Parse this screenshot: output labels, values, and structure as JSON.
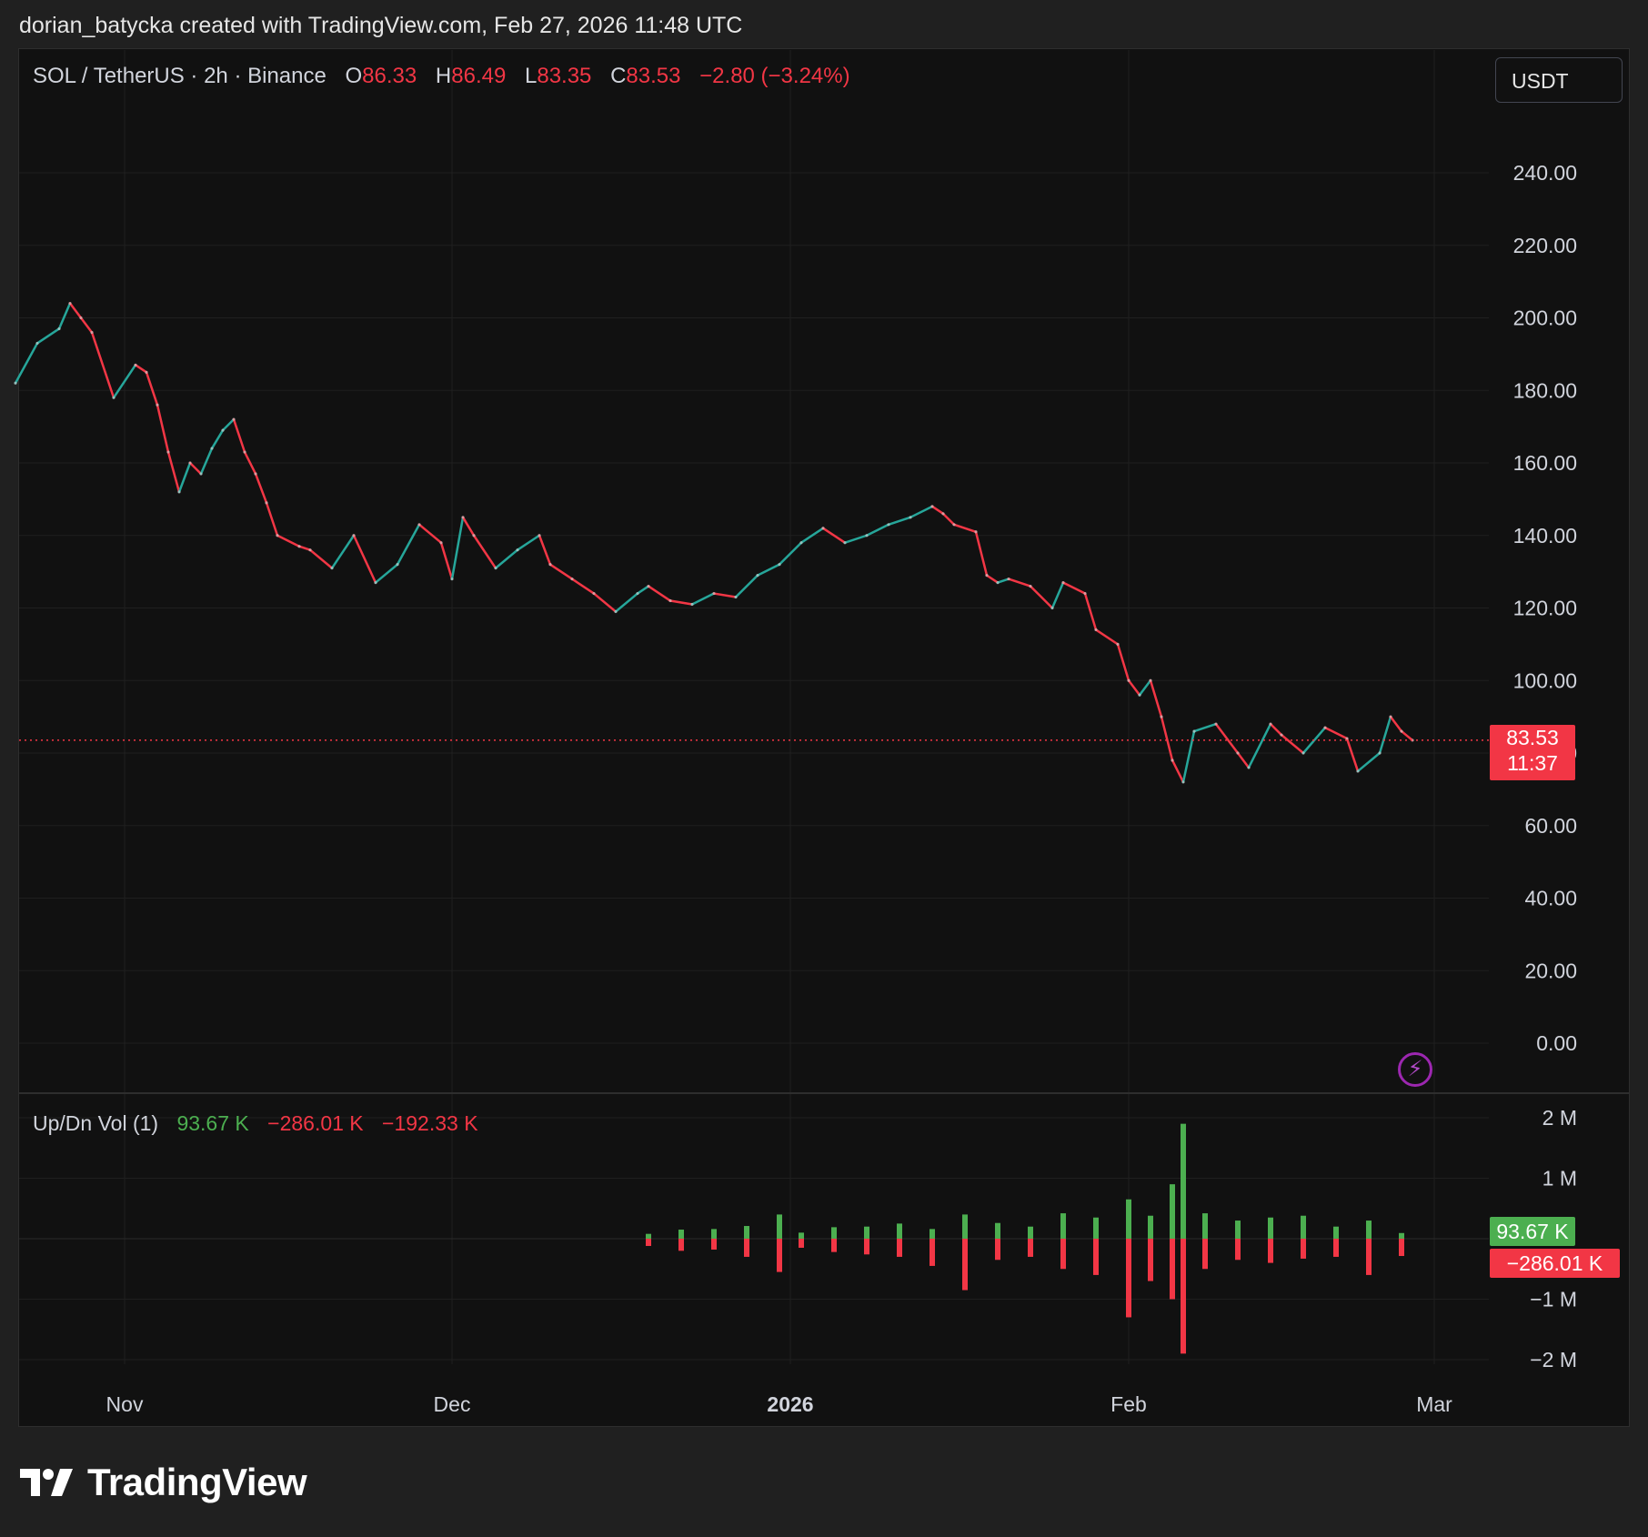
{
  "author_line": "dorian_batycka created with TradingView.com, Feb 27, 2026 11:48 UTC",
  "legend": {
    "symbol": "SOL / TetherUS · 2h · Binance",
    "open_label": "O",
    "open": "86.33",
    "high_label": "H",
    "high": "86.49",
    "low_label": "L",
    "low": "83.35",
    "close_label": "C",
    "close": "83.53",
    "change": "−2.80 (−3.24%)"
  },
  "currency_button": "USDT",
  "price_tag": {
    "price": "83.53",
    "countdown": "11:37"
  },
  "volume_legend": {
    "name": "Up/Dn Vol (1)",
    "up": "93.67 K",
    "down": "−286.01 K",
    "delta": "−192.33 K"
  },
  "volume_tags": {
    "up": "93.67 K",
    "down": "−286.01 K"
  },
  "brand": "TradingView",
  "colors": {
    "up": "#26a69a",
    "down": "#f23645",
    "vol_up": "#4caf50",
    "vol_down": "#f23645",
    "last_price_line": "#f23645",
    "bolt": "#9c27b0"
  },
  "icons": [
    "lightning-bolt-icon",
    "tradingview-logo-icon"
  ],
  "chart_data": [
    {
      "type": "line",
      "title": "SOL / TetherUS · 2h · Binance",
      "x_tick_labels": [
        "Nov",
        "Dec",
        "2026",
        "Feb",
        "Mar"
      ],
      "x_ticks": [
        "2025-11-01",
        "2025-12-01",
        "2026-01-01",
        "2026-02-01",
        "2026-03-01"
      ],
      "y_ticks": [
        0,
        20,
        40,
        60,
        80,
        100,
        120,
        140,
        160,
        180,
        200,
        220,
        240
      ],
      "y_tick_labels": [
        "0.00",
        "20.00",
        "40.00",
        "60.00",
        "80.00",
        "100.00",
        "120.00",
        "140.00",
        "160.00",
        "180.00",
        "200.00",
        "220.00",
        "240.00"
      ],
      "ylim": [
        -14,
        272
      ],
      "grid": true,
      "last_price": 83.53,
      "series": [
        {
          "x": [
            "2025-10-22",
            "2025-10-24",
            "2025-10-26",
            "2025-10-27",
            "2025-10-28",
            "2025-10-29",
            "2025-10-31",
            "2025-11-02",
            "2025-11-03",
            "2025-11-04",
            "2025-11-05",
            "2025-11-06",
            "2025-11-07",
            "2025-11-08",
            "2025-11-09",
            "2025-11-10",
            "2025-11-11",
            "2025-11-12",
            "2025-11-13",
            "2025-11-14",
            "2025-11-15",
            "2025-11-17",
            "2025-11-18",
            "2025-11-20",
            "2025-11-22",
            "2025-11-24",
            "2025-11-26",
            "2025-11-28",
            "2025-11-30",
            "2025-12-01",
            "2025-12-02",
            "2025-12-03",
            "2025-12-05",
            "2025-12-07",
            "2025-12-09",
            "2025-12-10",
            "2025-12-12",
            "2025-12-14",
            "2025-12-16",
            "2025-12-18",
            "2025-12-19",
            "2025-12-21",
            "2025-12-23",
            "2025-12-25",
            "2025-12-27",
            "2025-12-29",
            "2025-12-31",
            "2026-01-02",
            "2026-01-04",
            "2026-01-06",
            "2026-01-08",
            "2026-01-10",
            "2026-01-12",
            "2026-01-14",
            "2026-01-15",
            "2026-01-16",
            "2026-01-18",
            "2026-01-19",
            "2026-01-20",
            "2026-01-21",
            "2026-01-23",
            "2026-01-25",
            "2026-01-26",
            "2026-01-28",
            "2026-01-29",
            "2026-01-31",
            "2026-02-01",
            "2026-02-02",
            "2026-02-03",
            "2026-02-04",
            "2026-02-05",
            "2026-02-06",
            "2026-02-07",
            "2026-02-09",
            "2026-02-11",
            "2026-02-12",
            "2026-02-14",
            "2026-02-15",
            "2026-02-17",
            "2026-02-19",
            "2026-02-21",
            "2026-02-22",
            "2026-02-24",
            "2026-02-25",
            "2026-02-26",
            "2026-02-27"
          ],
          "y": [
            182,
            193,
            197,
            204,
            200,
            196,
            178,
            187,
            185,
            176,
            163,
            152,
            160,
            157,
            164,
            169,
            172,
            163,
            157,
            149,
            140,
            137,
            136,
            131,
            140,
            127,
            132,
            143,
            138,
            128,
            145,
            140,
            131,
            136,
            140,
            132,
            128,
            124,
            119,
            124,
            126,
            122,
            121,
            124,
            123,
            129,
            132,
            138,
            142,
            138,
            140,
            143,
            145,
            148,
            146,
            143,
            141,
            129,
            127,
            128,
            126,
            120,
            127,
            124,
            114,
            110,
            100,
            96,
            100,
            90,
            78,
            72,
            86,
            88,
            80,
            76,
            88,
            85,
            80,
            87,
            84,
            75,
            80,
            90,
            86,
            83.53
          ]
        }
      ]
    },
    {
      "type": "bar",
      "title": "Up/Dn Vol (1)",
      "y_ticks": [
        -2000000,
        -1000000,
        1000000,
        2000000
      ],
      "y_tick_labels": [
        "−2 M",
        "−1 M",
        "1 M",
        "2 M"
      ],
      "series": [
        {
          "name": "Up",
          "x": [
            "2025-12-19",
            "2025-12-22",
            "2025-12-25",
            "2025-12-28",
            "2025-12-31",
            "2026-01-02",
            "2026-01-05",
            "2026-01-08",
            "2026-01-11",
            "2026-01-14",
            "2026-01-17",
            "2026-01-20",
            "2026-01-23",
            "2026-01-26",
            "2026-01-29",
            "2026-02-01",
            "2026-02-03",
            "2026-02-05",
            "2026-02-06",
            "2026-02-08",
            "2026-02-11",
            "2026-02-14",
            "2026-02-17",
            "2026-02-20",
            "2026-02-23",
            "2026-02-26"
          ],
          "values": [
            80000,
            150000,
            160000,
            210000,
            400000,
            100000,
            190000,
            200000,
            250000,
            160000,
            400000,
            260000,
            200000,
            420000,
            350000,
            650000,
            380000,
            900000,
            1900000,
            420000,
            300000,
            350000,
            380000,
            200000,
            300000,
            93670
          ]
        },
        {
          "name": "Down",
          "x": [
            "2025-12-19",
            "2025-12-22",
            "2025-12-25",
            "2025-12-28",
            "2025-12-31",
            "2026-01-02",
            "2026-01-05",
            "2026-01-08",
            "2026-01-11",
            "2026-01-14",
            "2026-01-17",
            "2026-01-20",
            "2026-01-23",
            "2026-01-26",
            "2026-01-29",
            "2026-02-01",
            "2026-02-03",
            "2026-02-05",
            "2026-02-06",
            "2026-02-08",
            "2026-02-11",
            "2026-02-14",
            "2026-02-17",
            "2026-02-20",
            "2026-02-23",
            "2026-02-26"
          ],
          "values": [
            -120000,
            -200000,
            -180000,
            -300000,
            -550000,
            -150000,
            -220000,
            -260000,
            -300000,
            -450000,
            -850000,
            -350000,
            -300000,
            -500000,
            -600000,
            -1300000,
            -700000,
            -1000000,
            -1900000,
            -500000,
            -350000,
            -400000,
            -330000,
            -300000,
            -600000,
            -286010
          ]
        }
      ]
    }
  ]
}
